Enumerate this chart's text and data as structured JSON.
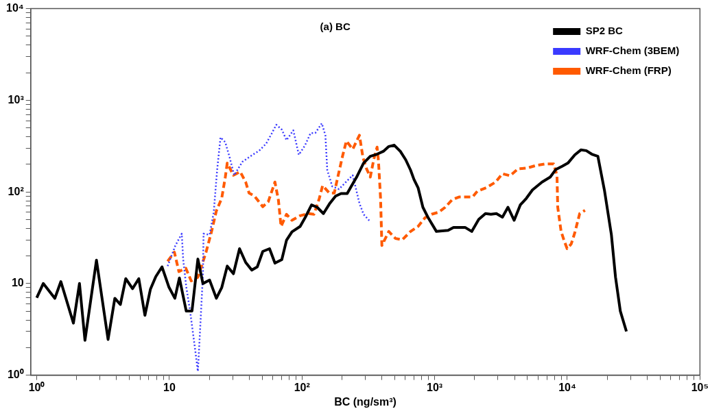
{
  "chart_data": {
    "type": "line",
    "xlabel": "BC (ng/sm³)",
    "annotations": [
      "(a) BC"
    ],
    "log": "xy",
    "grid": false,
    "legend": "top right",
    "marker": "none",
    "xlim": [
      0.9,
      100000
    ],
    "ylim": [
      1,
      10000
    ],
    "xticks": [
      {
        "value": 1,
        "label": "10⁰"
      },
      {
        "value": 2,
        "label": null
      },
      {
        "value": 3,
        "label": null
      },
      {
        "value": 4,
        "label": null
      },
      {
        "value": 5,
        "label": null
      },
      {
        "value": 6,
        "label": null
      },
      {
        "value": 7,
        "label": null
      },
      {
        "value": 8,
        "label": null
      },
      {
        "value": 9,
        "label": null
      },
      10,
      {
        "value": 20,
        "label": null
      },
      {
        "value": 30,
        "label": null
      },
      {
        "value": 40,
        "label": null
      },
      {
        "value": 50,
        "label": null
      },
      {
        "value": 60,
        "label": null
      },
      {
        "value": 70,
        "label": null
      },
      {
        "value": 80,
        "label": null
      },
      {
        "value": 90,
        "label": null
      },
      {
        "value": 100,
        "label": "10²"
      },
      {
        "value": 200,
        "label": null
      },
      {
        "value": 300,
        "label": null
      },
      {
        "value": 400,
        "label": null
      },
      {
        "value": 500,
        "label": null
      },
      {
        "value": 600,
        "label": null
      },
      {
        "value": 700,
        "label": null
      },
      {
        "value": 800,
        "label": null
      },
      {
        "value": 900,
        "label": null
      },
      {
        "value": 1000,
        "label": "10³"
      },
      {
        "value": 2000,
        "label": null
      },
      {
        "value": 3000,
        "label": null
      },
      {
        "value": 4000,
        "label": null
      },
      {
        "value": 5000,
        "label": null
      },
      {
        "value": 6000,
        "label": null
      },
      {
        "value": 7000,
        "label": null
      },
      {
        "value": 8000,
        "label": null
      },
      {
        "value": 9000,
        "label": null
      },
      {
        "value": 10000,
        "label": "10⁴"
      },
      {
        "value": 20000,
        "label": null
      },
      {
        "value": 30000,
        "label": null
      },
      {
        "value": 40000,
        "label": null
      },
      {
        "value": 50000,
        "label": null
      },
      {
        "value": 60000,
        "label": null
      },
      {
        "value": 70000,
        "label": null
      },
      {
        "value": 80000,
        "label": null
      },
      {
        "value": 90000,
        "label": null
      },
      {
        "value": 100000,
        "label": "10⁵"
      }
    ],
    "yticks": [
      {
        "value": 1,
        "label": "10⁰"
      },
      {
        "value": 2,
        "label": null
      },
      {
        "value": 3,
        "label": null
      },
      {
        "value": 4,
        "label": null
      },
      {
        "value": 5,
        "label": null
      },
      {
        "value": 6,
        "label": null
      },
      {
        "value": 7,
        "label": null
      },
      {
        "value": 8,
        "label": null
      },
      {
        "value": 9,
        "label": null
      },
      10,
      {
        "value": 20,
        "label": null
      },
      {
        "value": 30,
        "label": null
      },
      {
        "value": 40,
        "label": null
      },
      {
        "value": 50,
        "label": null
      },
      {
        "value": 60,
        "label": null
      },
      {
        "value": 70,
        "label": null
      },
      {
        "value": 80,
        "label": null
      },
      {
        "value": 90,
        "label": null
      },
      {
        "value": 100,
        "label": "10²"
      },
      {
        "value": 200,
        "label": null
      },
      {
        "value": 300,
        "label": null
      },
      {
        "value": 400,
        "label": null
      },
      {
        "value": 500,
        "label": null
      },
      {
        "value": 600,
        "label": null
      },
      {
        "value": 700,
        "label": null
      },
      {
        "value": 800,
        "label": null
      },
      {
        "value": 900,
        "label": null
      },
      {
        "value": 1000,
        "label": "10³"
      },
      {
        "value": 2000,
        "label": null
      },
      {
        "value": 3000,
        "label": null
      },
      {
        "value": 4000,
        "label": null
      },
      {
        "value": 5000,
        "label": null
      },
      {
        "value": 6000,
        "label": null
      },
      {
        "value": 7000,
        "label": null
      },
      {
        "value": 8000,
        "label": null
      },
      {
        "value": 9000,
        "label": null
      },
      {
        "value": 10000,
        "label": "10⁴"
      }
    ],
    "series": [
      {
        "name": "SP2 BC",
        "color": "#000000",
        "line_style": "solid",
        "x": [
          1.0,
          1.12,
          1.37,
          1.52,
          1.89,
          2.1,
          2.31,
          2.82,
          3.45,
          3.88,
          4.27,
          4.69,
          5.28,
          5.88,
          6.54,
          7.2,
          7.9,
          8.8,
          9.9,
          11,
          11.9,
          13.4,
          14.8,
          16.4,
          17.9,
          20.1,
          22.6,
          24.8,
          27.3,
          30.4,
          33.8,
          37.6,
          41.8,
          46,
          50.6,
          56.9,
          62.5,
          70.4,
          76.4,
          84,
          96.8,
          106,
          118,
          130,
          145,
          161,
          179,
          197,
          219,
          235,
          258,
          291,
          327,
          368,
          410,
          451,
          495,
          551,
          605,
          658,
          698,
          750,
          815,
          895,
          1031,
          1262,
          1387,
          1695,
          1905,
          2148,
          2415,
          2655,
          2920,
          3243,
          3570,
          3975,
          4420,
          4910,
          5460,
          6450,
          7430,
          8170,
          9190,
          10100,
          11400,
          12660,
          13900,
          15300,
          17000,
          19100,
          21500,
          23100,
          25100,
          27900
        ],
        "values": [
          7.0,
          10,
          6.9,
          10.5,
          3.7,
          10,
          2.4,
          18,
          2.45,
          6.9,
          5.9,
          11.3,
          8.8,
          11.3,
          4.5,
          8.7,
          11.9,
          15.2,
          9.2,
          6.9,
          11.5,
          5.0,
          5.0,
          18.5,
          10,
          10.9,
          6.9,
          9.0,
          15.5,
          12.8,
          24,
          17,
          14.0,
          15.2,
          22.4,
          24,
          16.7,
          18.2,
          29.7,
          36.7,
          42,
          53,
          72,
          68,
          58,
          74,
          90,
          96,
          96,
          115,
          145,
          206,
          245,
          258,
          277,
          313,
          324,
          277,
          224,
          173,
          137,
          111,
          68,
          52,
          37,
          38,
          41,
          41,
          37,
          50,
          58,
          57,
          58,
          53,
          68,
          49,
          72,
          85,
          105,
          128,
          145,
          175,
          191,
          206,
          254,
          287,
          282,
          258,
          245,
          102,
          34,
          11.7,
          5.0,
          3.0
        ]
      },
      {
        "name": "WRF-Chem (3BEM)",
        "color": "#3a3aff",
        "line_style": "dotted",
        "x": [
          9.7,
          11.1,
          12.4,
          12.7,
          13.4,
          14.3,
          15.5,
          16.4,
          17.0,
          17.9,
          18.1,
          20.1,
          21.6,
          22.9,
          24.3,
          26.4,
          28.6,
          30.8,
          35.5,
          42.4,
          47.6,
          53.6,
          58.9,
          64,
          70.4,
          76.4,
          86,
          94.6,
          105,
          116,
          126,
          141,
          150,
          155,
          169,
          190,
          214,
          241,
          271,
          291,
          324
        ],
        "values": [
          15.5,
          26,
          35,
          18.5,
          9.2,
          5.1,
          2.1,
          1.1,
          2.9,
          12.4,
          35,
          34,
          60,
          173,
          394,
          348,
          232,
          152,
          213,
          254,
          282,
          336,
          430,
          541,
          478,
          367,
          470,
          254,
          319,
          438,
          440,
          560,
          415,
          173,
          115,
          107,
          128,
          152,
          75,
          57,
          48
        ]
      },
      {
        "name": "WRF-Chem (FRP)",
        "color": "#ff5a00",
        "line_style": "dashed",
        "x": [
          9.7,
          10.9,
          11.8,
          13.3,
          14.6,
          16.4,
          18.9,
          20.8,
          22.6,
          24.8,
          26.4,
          27.3,
          30.4,
          34.2,
          37.6,
          39.9,
          43.8,
          50.6,
          55.6,
          62.5,
          66.4,
          69.5,
          76.4,
          84,
          96.8,
          112,
          123,
          135,
          143,
          161,
          175,
          186,
          202,
          216,
          241,
          271,
          288,
          305,
          327,
          347,
          368,
          377,
          391,
          400,
          451,
          507,
          570,
          658,
          750,
          844,
          948,
          1069,
          1202,
          1352,
          1524,
          1930,
          2100,
          2443,
          2884,
          3243,
          3698,
          4266,
          4970,
          5860,
          6840,
          7890,
          8360,
          8470,
          8980,
          9420,
          9970,
          10700,
          11400,
          12400,
          13600
        ],
        "values": [
          17.5,
          22,
          13.5,
          14.7,
          10.7,
          11.7,
          22,
          37,
          62,
          85,
          145,
          206,
          152,
          166,
          128,
          97,
          90,
          69,
          78,
          128,
          81,
          42,
          57,
          49,
          55,
          58,
          57,
          85,
          117,
          97,
          97,
          145,
          245,
          360,
          292,
          415,
          237,
          182,
          145,
          224,
          308,
          217,
          85,
          26,
          37,
          31,
          30,
          37,
          42,
          52,
          57,
          60,
          68,
          82,
          88,
          88,
          102,
          111,
          128,
          158,
          150,
          179,
          182,
          195,
          202,
          202,
          152,
          68,
          37,
          30,
          24,
          27,
          36,
          58,
          63
        ]
      }
    ]
  }
}
